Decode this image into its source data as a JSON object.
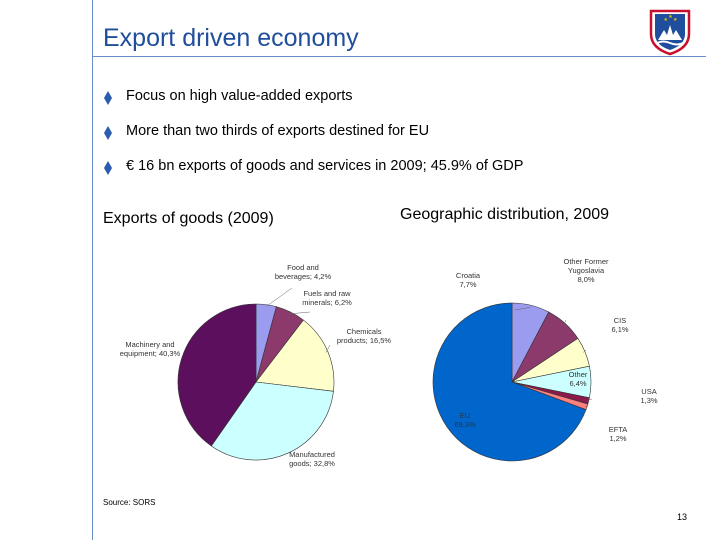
{
  "slide": {
    "title": "Export driven economy",
    "page_number": "13",
    "source": "Source: SORS",
    "bullets": [
      "Focus on high value-added exports",
      "More than two thirds of exports destined for EU",
      "€ 16 bn exports of goods and services in 2009; 45.9% of GDP"
    ],
    "colors": {
      "title": "#1f4e9c",
      "rule": "#6a8ec7",
      "bullet": "#2b5cae"
    }
  },
  "chart_data": [
    {
      "type": "pie",
      "title": "Exports of goods (2009)",
      "slices": [
        {
          "name": "Food and beverages",
          "label_lines": [
            "Food and",
            "beverages; 4,2%"
          ],
          "value": 4.2,
          "color": "#9b9bf0"
        },
        {
          "name": "Fuels and raw minerals",
          "label_lines": [
            "Fuels and raw",
            "minerals; 6,2%"
          ],
          "value": 6.2,
          "color": "#8b3a6b"
        },
        {
          "name": "Chemicals products",
          "label_lines": [
            "Chemicals",
            "products; 16,5%"
          ],
          "value": 16.5,
          "color": "#ffffcc"
        },
        {
          "name": "Manufactured goods",
          "label_lines": [
            "Manufactured",
            "goods; 32,8%"
          ],
          "value": 32.8,
          "color": "#ccffff"
        },
        {
          "name": "Machinery and equipment",
          "label_lines": [
            "Machinery and",
            "equipment; 40,3%"
          ],
          "value": 40.3,
          "color": "#5c0f5c"
        }
      ]
    },
    {
      "type": "pie",
      "title": "Geographic distribution, 2009",
      "slices": [
        {
          "name": "Croatia",
          "label_lines": [
            "Croatia",
            "7,7%"
          ],
          "value": 7.7,
          "color": "#9b9bf0"
        },
        {
          "name": "Other Former Yugoslavia",
          "label_lines": [
            "Other Former",
            "Yugoslavia",
            "8,0%"
          ],
          "value": 8.0,
          "color": "#8b3a6b"
        },
        {
          "name": "CIS",
          "label_lines": [
            "CIS",
            "6,1%"
          ],
          "value": 6.1,
          "color": "#ffffcc"
        },
        {
          "name": "Other",
          "label_lines": [
            "Other",
            "6,4%"
          ],
          "value": 6.4,
          "color": "#ccffff"
        },
        {
          "name": "USA",
          "label_lines": [
            "USA",
            "1,3%"
          ],
          "value": 1.3,
          "color": "#8b1a4a"
        },
        {
          "name": "EFTA",
          "label_lines": [
            "EFTA",
            "1,2%"
          ],
          "value": 1.2,
          "color": "#ff8080"
        },
        {
          "name": "EU",
          "label_lines": [
            "EU",
            "69,3%"
          ],
          "value": 69.3,
          "color": "#0066cc"
        }
      ]
    }
  ]
}
